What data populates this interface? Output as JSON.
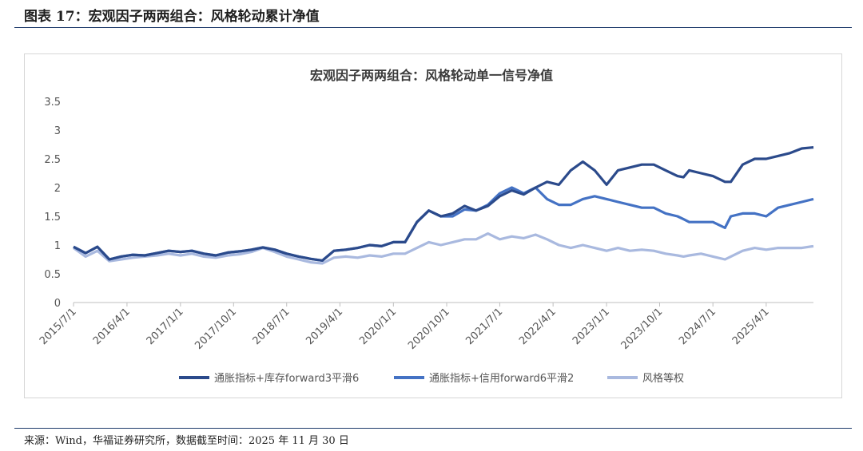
{
  "caption": "图表 17：宏观因子两两组合：风格轮动累计净值",
  "source": "来源：Wind，华福证券研究所，数据截至时间：2025 年 11 月 30 日",
  "colors": {
    "rule": "#1e3a6b",
    "series1": "#2b4a8b",
    "series2": "#4472c4",
    "series3": "#a9b9df"
  },
  "chart_data": {
    "type": "line",
    "title": "宏观因子两两组合：风格轮动单一信号净值",
    "xlabel": "",
    "ylabel": "",
    "ylim": [
      0,
      3.5
    ],
    "yticks": [
      "0",
      "0.5",
      "1",
      "1.5",
      "2",
      "2.5",
      "3",
      "3.5"
    ],
    "yticks_values": [
      0,
      0.5,
      1,
      1.5,
      2,
      2.5,
      3,
      3.5
    ],
    "xlim": [
      "2015/7/1",
      "2025/11/30"
    ],
    "xticks": [
      "2015/7/1",
      "2016/4/1",
      "2017/1/1",
      "2017/10/1",
      "2018/7/1",
      "2019/4/1",
      "2020/1/1",
      "2020/10/1",
      "2021/7/1",
      "2022/4/1",
      "2023/1/1",
      "2023/10/1",
      "2024/7/1",
      "2025/4/1"
    ],
    "grid": false,
    "legend": "bottom",
    "x": [
      "2015/7/1",
      "2015/9/1",
      "2015/11/1",
      "2016/1/1",
      "2016/3/1",
      "2016/5/1",
      "2016/7/1",
      "2016/9/1",
      "2016/11/1",
      "2017/1/1",
      "2017/3/1",
      "2017/5/1",
      "2017/7/1",
      "2017/9/1",
      "2017/11/1",
      "2018/1/1",
      "2018/3/1",
      "2018/5/1",
      "2018/7/1",
      "2018/9/1",
      "2018/11/1",
      "2019/1/1",
      "2019/3/1",
      "2019/5/1",
      "2019/7/1",
      "2019/9/1",
      "2019/11/1",
      "2020/1/1",
      "2020/3/1",
      "2020/5/1",
      "2020/7/1",
      "2020/9/1",
      "2020/11/1",
      "2021/1/1",
      "2021/3/1",
      "2021/5/1",
      "2021/7/1",
      "2021/9/1",
      "2021/11/1",
      "2022/1/1",
      "2022/3/1",
      "2022/5/1",
      "2022/7/1",
      "2022/9/1",
      "2022/11/1",
      "2023/1/1",
      "2023/3/1",
      "2023/5/1",
      "2023/7/1",
      "2023/9/1",
      "2023/11/1",
      "2024/1/1",
      "2024/2/1",
      "2024/3/1",
      "2024/5/1",
      "2024/7/1",
      "2024/9/1",
      "2024/10/1",
      "2024/12/1",
      "2025/2/1",
      "2025/4/1",
      "2025/6/1",
      "2025/8/1",
      "2025/10/1",
      "2025/11/30"
    ],
    "series": [
      {
        "name": "通胀指标+库存forward3平滑6",
        "values": [
          0.97,
          0.86,
          0.97,
          0.75,
          0.8,
          0.83,
          0.82,
          0.86,
          0.9,
          0.88,
          0.9,
          0.85,
          0.82,
          0.87,
          0.89,
          0.92,
          0.96,
          0.92,
          0.85,
          0.8,
          0.76,
          0.73,
          0.9,
          0.92,
          0.95,
          1.0,
          0.98,
          1.05,
          1.05,
          1.4,
          1.6,
          1.5,
          1.55,
          1.68,
          1.6,
          1.68,
          1.85,
          1.95,
          1.88,
          2.0,
          2.1,
          2.05,
          2.3,
          2.45,
          2.3,
          2.05,
          2.3,
          2.35,
          2.4,
          2.4,
          2.3,
          2.2,
          2.18,
          2.3,
          2.25,
          2.2,
          2.1,
          2.1,
          2.4,
          2.5,
          2.5,
          2.55,
          2.6,
          2.68,
          2.7
        ]
      },
      {
        "name": "通胀指标+信用forward6平滑2",
        "values": [
          0.97,
          0.86,
          0.97,
          0.75,
          0.8,
          0.83,
          0.82,
          0.86,
          0.9,
          0.88,
          0.9,
          0.85,
          0.82,
          0.87,
          0.89,
          0.92,
          0.96,
          0.92,
          0.85,
          0.8,
          0.76,
          0.73,
          0.9,
          0.92,
          0.95,
          1.0,
          0.98,
          1.05,
          1.05,
          1.4,
          1.6,
          1.5,
          1.5,
          1.62,
          1.6,
          1.7,
          1.9,
          2.0,
          1.9,
          2.0,
          1.8,
          1.7,
          1.7,
          1.8,
          1.85,
          1.8,
          1.75,
          1.7,
          1.65,
          1.65,
          1.55,
          1.5,
          1.45,
          1.4,
          1.4,
          1.4,
          1.3,
          1.5,
          1.55,
          1.55,
          1.5,
          1.65,
          1.7,
          1.75,
          1.8
        ]
      },
      {
        "name": "风格等权",
        "values": [
          0.95,
          0.8,
          0.9,
          0.72,
          0.75,
          0.78,
          0.8,
          0.82,
          0.85,
          0.82,
          0.85,
          0.8,
          0.78,
          0.82,
          0.84,
          0.88,
          0.95,
          0.88,
          0.8,
          0.75,
          0.7,
          0.68,
          0.78,
          0.8,
          0.78,
          0.82,
          0.8,
          0.85,
          0.85,
          0.95,
          1.05,
          1.0,
          1.05,
          1.1,
          1.1,
          1.2,
          1.1,
          1.15,
          1.12,
          1.18,
          1.1,
          1.0,
          0.95,
          1.0,
          0.95,
          0.9,
          0.95,
          0.9,
          0.92,
          0.9,
          0.85,
          0.82,
          0.8,
          0.82,
          0.85,
          0.8,
          0.75,
          0.8,
          0.9,
          0.95,
          0.92,
          0.95,
          0.95,
          0.95,
          0.98
        ]
      }
    ]
  }
}
